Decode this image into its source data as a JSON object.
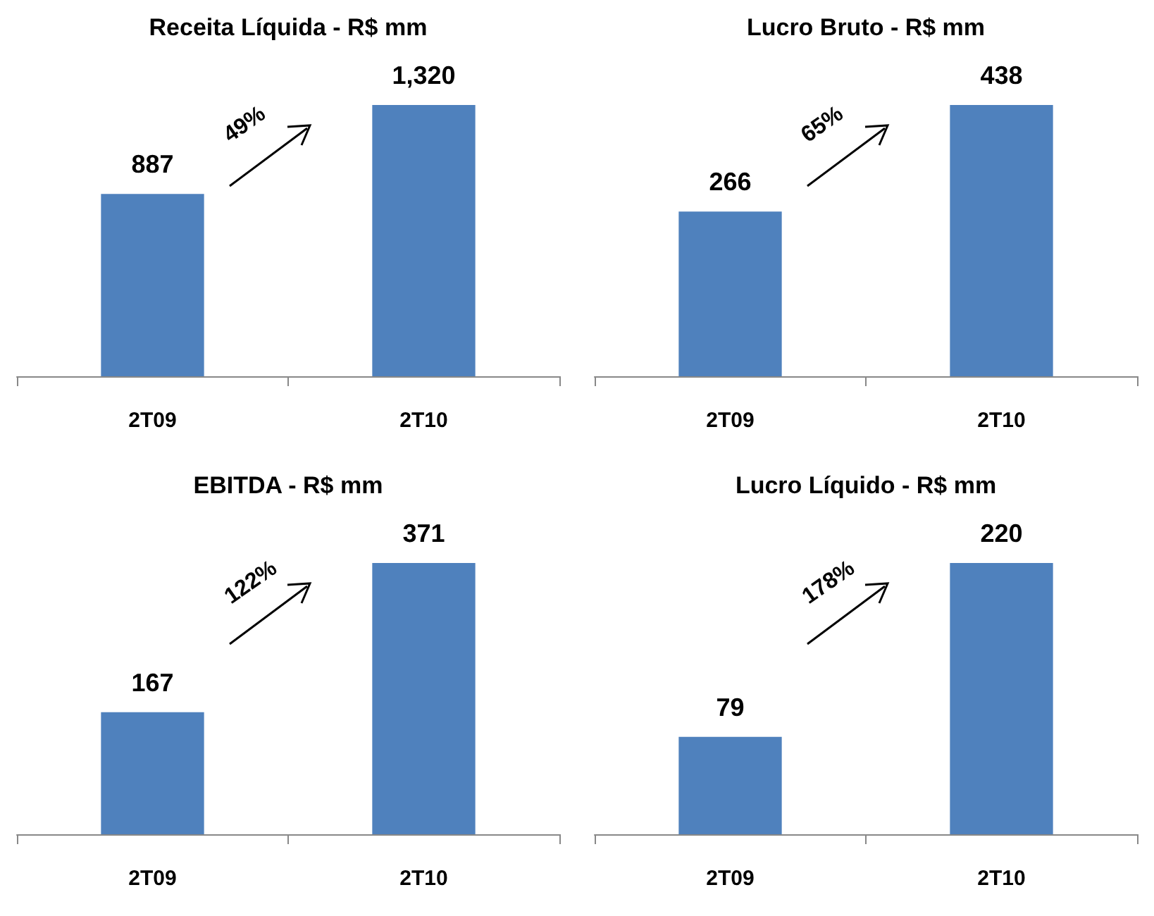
{
  "chart_data": [
    {
      "type": "bar",
      "title": "Receita Líquida - R$ mm",
      "categories": [
        "2T09",
        "2T10"
      ],
      "values": [
        887,
        1320
      ],
      "value_labels": [
        "887",
        "1,320"
      ],
      "color": "#4f81bd",
      "annotations": [
        "49%"
      ]
    },
    {
      "type": "bar",
      "title": "Lucro Bruto - R$ mm",
      "categories": [
        "2T09",
        "2T10"
      ],
      "values": [
        266,
        438
      ],
      "value_labels": [
        "266",
        "438"
      ],
      "color": "#4f81bd",
      "annotations": [
        "65%"
      ]
    },
    {
      "type": "bar",
      "title": "EBITDA - R$ mm",
      "categories": [
        "2T09",
        "2T10"
      ],
      "values": [
        167,
        371
      ],
      "value_labels": [
        "167",
        "371"
      ],
      "color": "#4f81bd",
      "annotations": [
        "122%"
      ]
    },
    {
      "type": "bar",
      "title": "Lucro Líquido - R$ mm",
      "categories": [
        "2T09",
        "2T10"
      ],
      "values": [
        79,
        220
      ],
      "value_labels": [
        "79",
        "220"
      ],
      "color": "#4f81bd",
      "annotations": [
        "178%"
      ]
    }
  ]
}
